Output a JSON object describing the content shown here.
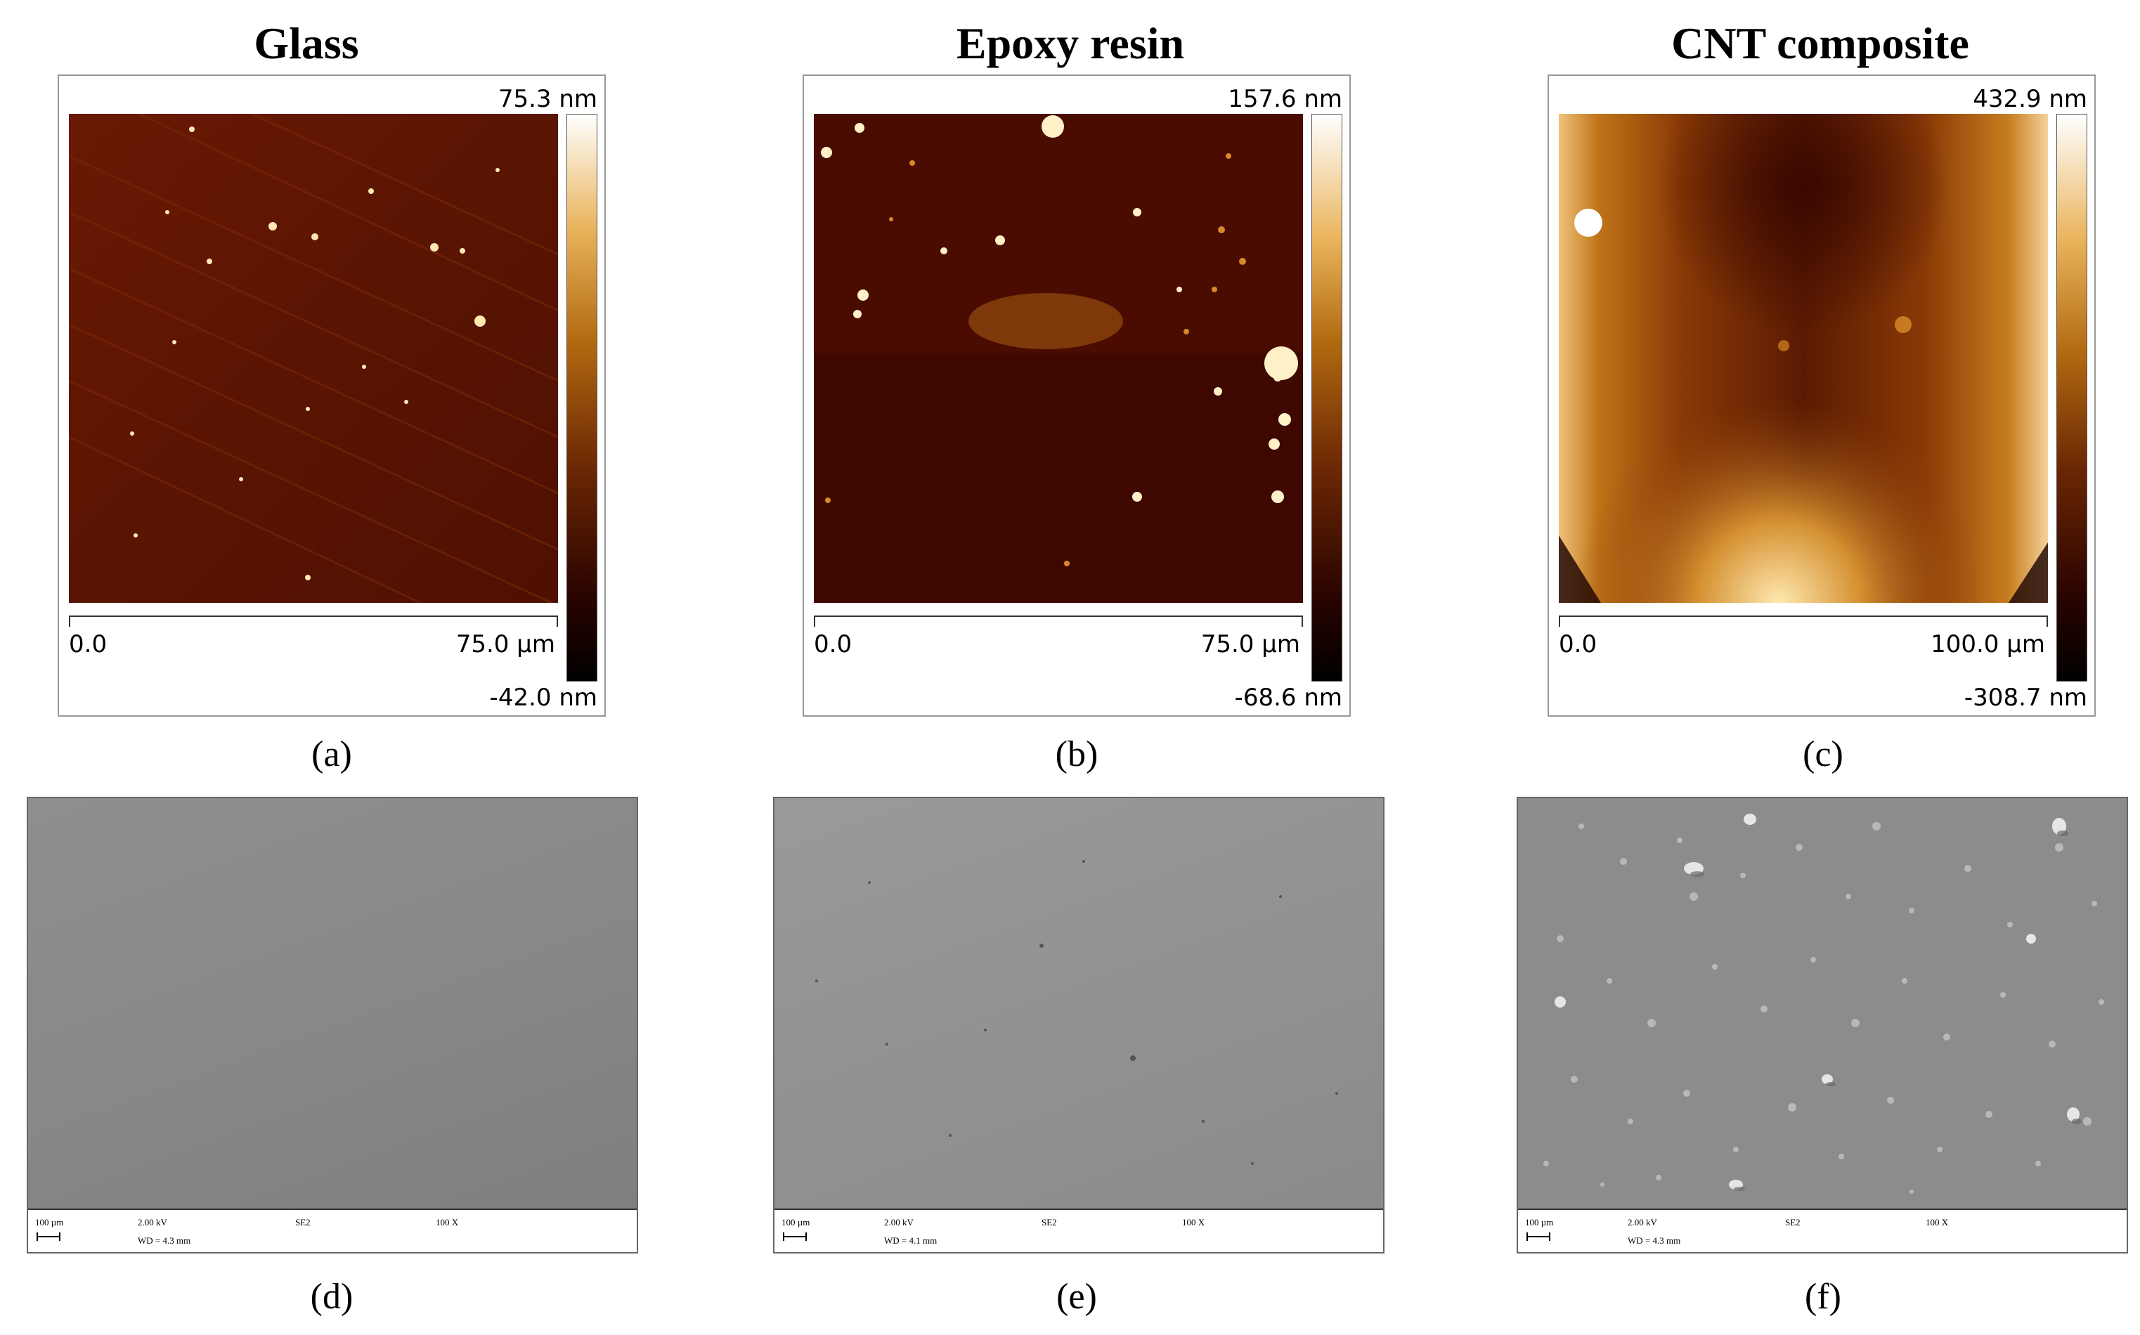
{
  "afm_panels": [
    {
      "id": "a",
      "title": "Glass",
      "color_max": "75.3 nm",
      "color_min": "-42.0 nm",
      "scale_start": "0.0",
      "scale_end": "75.0 µm",
      "label": "(a)"
    },
    {
      "id": "b",
      "title": "Epoxy resin",
      "color_max": "157.6 nm",
      "color_min": "-68.6 nm",
      "scale_start": "0.0",
      "scale_end": "75.0 µm",
      "label": "(b)"
    },
    {
      "id": "c",
      "title": "CNT composite",
      "color_max": "432.9 nm",
      "color_min": "-308.7 nm",
      "scale_start": "0.0",
      "scale_end": "100.0 µm",
      "label": "(c)"
    }
  ],
  "sem_panels": [
    {
      "id": "d",
      "scale": "100 µm",
      "voltage": "2.00 kV",
      "detector": "SE2",
      "magnification": "100 X",
      "wd": "WD = 4.3 mm",
      "label": "(d)"
    },
    {
      "id": "e",
      "scale": "100 µm",
      "voltage": "2.00 kV",
      "detector": "SE2",
      "magnification": "100 X",
      "wd": "WD = 4.1 mm",
      "label": "(e)"
    },
    {
      "id": "f",
      "scale": "100 µm",
      "voltage": "2.00 kV",
      "detector": "SE2",
      "magnification": "100 X",
      "wd": "WD = 4.3 mm",
      "label": "(f)"
    }
  ],
  "colors": {
    "afm_dark": "#3a0800",
    "afm_mid": "#b26a10",
    "afm_light": "#ffffff",
    "sem_gray": "#8a8a8a"
  }
}
